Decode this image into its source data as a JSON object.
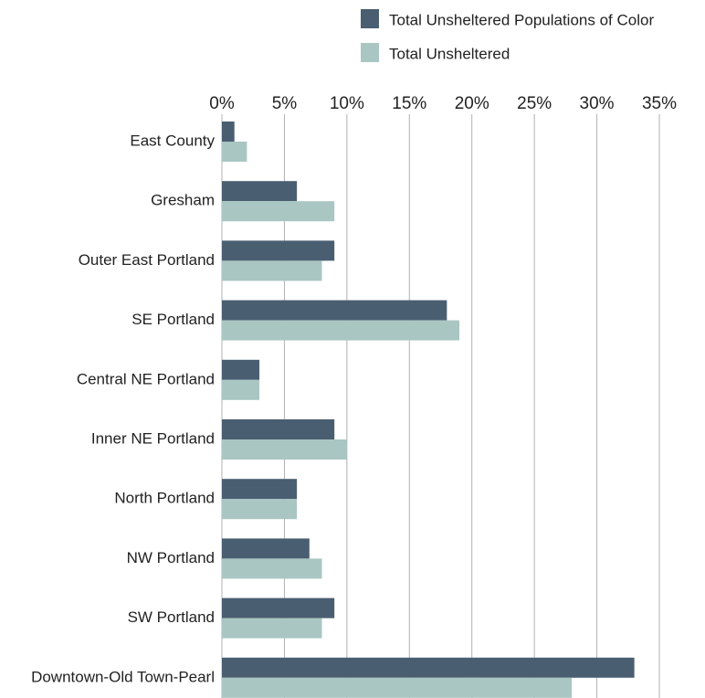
{
  "chart_data": {
    "type": "hbar",
    "categories": [
      "East County",
      "Gresham",
      "Outer East Portland",
      "SE Portland",
      "Central NE Portland",
      "Inner NE Portland",
      "North Portland",
      "NW Portland",
      "SW Portland",
      "Downtown-Old Town-Pearl"
    ],
    "series": [
      {
        "name": "Total Unsheltered Populations of Color",
        "color": "#4a5e72",
        "values": [
          1,
          6,
          9,
          18,
          3,
          9,
          6,
          7,
          9,
          33
        ]
      },
      {
        "name": "Total Unsheltered",
        "color": "#a9c6c2",
        "values": [
          2,
          9,
          8,
          19,
          3,
          10,
          6,
          8,
          8,
          28
        ]
      }
    ],
    "xlim": [
      0,
      35
    ],
    "xticks": [
      {
        "value": 0,
        "label": "0%"
      },
      {
        "value": 5,
        "label": "5%"
      },
      {
        "value": 10,
        "label": "10%"
      },
      {
        "value": 15,
        "label": "15%"
      },
      {
        "value": 20,
        "label": "20%"
      },
      {
        "value": 25,
        "label": "25%"
      },
      {
        "value": 30,
        "label": "30%"
      },
      {
        "value": 35,
        "label": "35%"
      }
    ],
    "grid": true,
    "legend": "top-right"
  }
}
